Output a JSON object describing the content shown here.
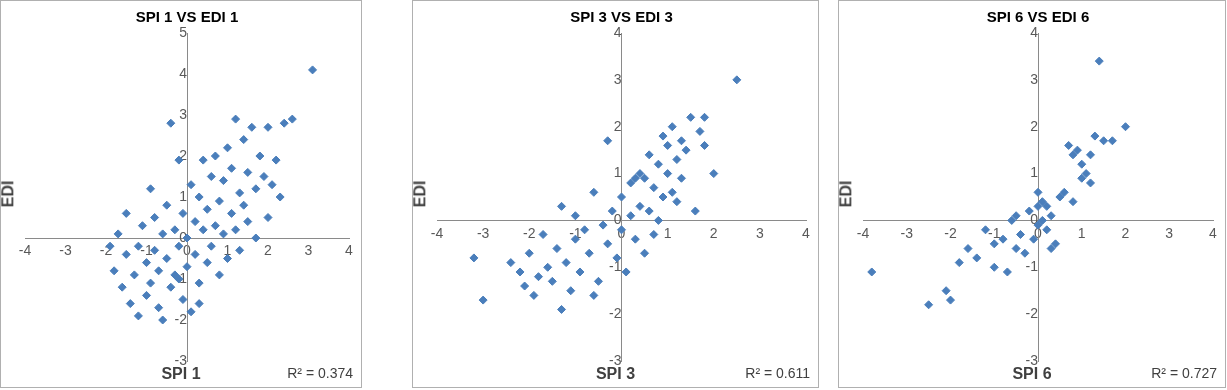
{
  "chart_data": [
    {
      "type": "scatter",
      "title": "SPI 1 VS EDI 1",
      "x_label": "SPI 1",
      "y_label": "EDI",
      "annotation": "R² = 0.374",
      "color": "#4a7ebb",
      "marker": "diamond",
      "grid": false,
      "xlim": [
        -4,
        4
      ],
      "ylim": [
        -3,
        5
      ],
      "xticks": [
        -4,
        -3,
        -2,
        -1,
        0,
        1,
        2,
        3,
        4
      ],
      "yticks": [
        -3,
        -2,
        -1,
        0,
        1,
        2,
        3,
        4,
        5
      ],
      "x": [
        -1.8,
        -1.7,
        -1.6,
        -1.5,
        -1.5,
        -1.4,
        -1.3,
        -1.2,
        -1.2,
        -1.1,
        -1.0,
        -1.0,
        -0.9,
        -0.9,
        -0.8,
        -0.8,
        -0.7,
        -0.7,
        -0.6,
        -0.6,
        -0.5,
        -0.5,
        -0.4,
        -0.4,
        -0.3,
        -0.3,
        -0.2,
        -0.2,
        -0.1,
        -0.1,
        0.0,
        0.0,
        0.1,
        0.1,
        0.2,
        0.2,
        0.3,
        0.3,
        0.4,
        0.4,
        0.5,
        0.5,
        0.6,
        0.6,
        0.7,
        0.7,
        0.8,
        0.8,
        0.9,
        0.9,
        1.0,
        1.0,
        1.1,
        1.1,
        1.2,
        1.2,
        1.3,
        1.3,
        1.4,
        1.4,
        1.5,
        1.5,
        1.6,
        1.7,
        1.7,
        1.8,
        1.9,
        2.0,
        2.0,
        2.1,
        2.2,
        2.3,
        2.4,
        2.6,
        3.1,
        -0.2,
        0.3,
        -1.9
      ],
      "values": [
        -0.8,
        0.1,
        -1.2,
        -0.4,
        0.6,
        -1.6,
        -0.9,
        -0.2,
        -1.9,
        0.3,
        -1.4,
        -0.6,
        1.2,
        -1.1,
        -0.3,
        0.5,
        -1.7,
        -0.8,
        0.1,
        -2.0,
        -0.5,
        0.8,
        -1.2,
        2.8,
        0.2,
        -0.9,
        1.9,
        -0.2,
        -1.5,
        0.6,
        0.0,
        -0.7,
        1.3,
        -1.8,
        0.4,
        -0.4,
        1.0,
        -1.1,
        0.2,
        1.9,
        -0.6,
        0.7,
        1.5,
        -0.2,
        0.3,
        2.0,
        -0.9,
        0.9,
        1.4,
        0.1,
        2.2,
        -0.5,
        0.6,
        1.7,
        0.2,
        2.9,
        1.1,
        -0.3,
        0.8,
        2.4,
        1.6,
        0.4,
        2.7,
        1.2,
        0.0,
        2.0,
        1.5,
        2.7,
        0.5,
        1.3,
        1.9,
        1.0,
        2.8,
        2.9,
        4.1,
        -1.0,
        -1.6,
        -0.2
      ]
    },
    {
      "type": "scatter",
      "title": "SPI 3 VS EDI 3",
      "x_label": "SPI 3",
      "y_label": "EDI",
      "annotation": "R² = 0.611",
      "color": "#4a7ebb",
      "marker": "diamond",
      "grid": false,
      "xlim": [
        -4,
        4
      ],
      "ylim": [
        -3,
        4
      ],
      "xticks": [
        -4,
        -3,
        -2,
        -1,
        0,
        1,
        2,
        3,
        4
      ],
      "yticks": [
        -3,
        -2,
        -1,
        0,
        1,
        2,
        3,
        4
      ],
      "x": [
        -3.2,
        -3.0,
        -2.4,
        -2.2,
        -2.1,
        -2.0,
        -1.9,
        -1.8,
        -1.7,
        -1.6,
        -1.5,
        -1.4,
        -1.3,
        -1.2,
        -1.1,
        -1.0,
        -1.0,
        -0.9,
        -0.8,
        -0.7,
        -0.6,
        -0.5,
        -0.4,
        -0.3,
        -0.3,
        -0.2,
        -0.1,
        0.0,
        0.0,
        0.1,
        0.2,
        0.2,
        0.3,
        0.4,
        0.4,
        0.5,
        0.5,
        0.6,
        0.6,
        0.7,
        0.7,
        0.8,
        0.8,
        0.9,
        0.9,
        1.0,
        1.0,
        1.1,
        1.1,
        1.2,
        1.3,
        1.3,
        1.4,
        1.5,
        1.6,
        1.7,
        1.8,
        1.8,
        2.0,
        2.5,
        -0.6,
        0.3,
        -1.3,
        1.2
      ],
      "values": [
        -0.8,
        -1.7,
        -0.9,
        -1.1,
        -1.4,
        -0.7,
        -1.6,
        -1.2,
        -0.3,
        -1.0,
        -1.3,
        -0.6,
        0.3,
        -0.9,
        -1.5,
        -0.4,
        0.1,
        -1.1,
        -0.2,
        -0.7,
        0.6,
        -1.3,
        -0.1,
        1.7,
        -0.5,
        0.2,
        -0.8,
        0.5,
        -0.2,
        -1.1,
        0.8,
        0.1,
        -0.4,
        1.0,
        0.3,
        -0.7,
        0.9,
        0.2,
        1.4,
        -0.3,
        0.7,
        1.2,
        0.0,
        1.8,
        0.5,
        1.0,
        1.6,
        2.0,
        0.6,
        1.3,
        1.7,
        0.9,
        1.5,
        2.2,
        0.2,
        1.9,
        2.2,
        1.6,
        1.0,
        3.0,
        -1.6,
        0.9,
        -1.9,
        0.4
      ]
    },
    {
      "type": "scatter",
      "title": "SPI 6 VS EDI 6",
      "x_label": "SPI 6",
      "y_label": "EDI",
      "annotation": "R² = 0.727",
      "color": "#4a7ebb",
      "marker": "diamond",
      "grid": false,
      "xlim": [
        -4,
        4
      ],
      "ylim": [
        -3,
        4
      ],
      "xticks": [
        -4,
        -3,
        -2,
        -1,
        0,
        1,
        2,
        3,
        4
      ],
      "yticks": [
        -3,
        -2,
        -1,
        0,
        1,
        2,
        3,
        4
      ],
      "x": [
        -3.8,
        -2.5,
        -2.1,
        -2.0,
        -1.8,
        -1.6,
        -1.4,
        -1.2,
        -1.0,
        -1.0,
        -0.8,
        -0.7,
        -0.6,
        -0.5,
        -0.4,
        -0.3,
        -0.2,
        -0.1,
        0.0,
        0.0,
        0.1,
        0.1,
        0.2,
        0.2,
        0.3,
        0.4,
        0.5,
        0.6,
        0.7,
        0.8,
        0.8,
        0.9,
        1.0,
        1.0,
        1.1,
        1.2,
        1.3,
        1.4,
        1.5,
        1.7,
        2.0,
        0.3,
        -0.5,
        1.2,
        0.0
      ],
      "values": [
        -1.1,
        -1.8,
        -1.5,
        -1.7,
        -0.9,
        -0.6,
        -0.8,
        -0.2,
        -0.5,
        -1.0,
        -0.4,
        -1.1,
        0.0,
        -0.6,
        -0.3,
        -0.7,
        0.2,
        -0.4,
        0.3,
        -0.1,
        0.4,
        0.0,
        -0.2,
        0.3,
        0.1,
        -0.5,
        0.5,
        0.6,
        1.6,
        0.4,
        1.4,
        1.5,
        0.9,
        1.2,
        1.0,
        0.8,
        1.8,
        3.4,
        1.7,
        1.7,
        2.0,
        -0.6,
        0.1,
        1.4,
        0.6
      ]
    }
  ]
}
